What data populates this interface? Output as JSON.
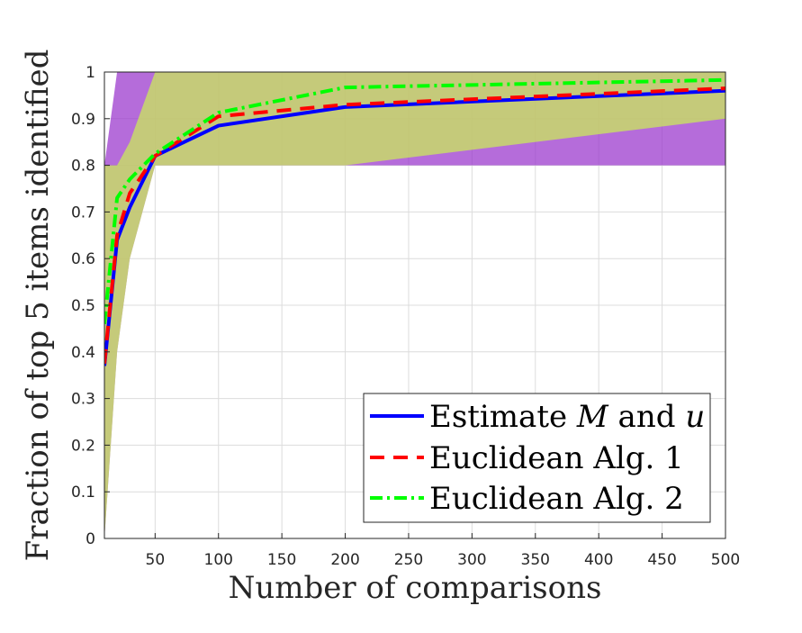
{
  "chart_data": {
    "type": "line",
    "xlabel": "Number of comparisons",
    "ylabel": "Fraction of top 5 items identified",
    "xlim": [
      10,
      500
    ],
    "ylim": [
      0,
      1
    ],
    "xticks": [
      50,
      100,
      150,
      200,
      250,
      300,
      350,
      400,
      450,
      500
    ],
    "yticks": [
      0,
      0.1,
      0.2,
      0.3,
      0.4,
      0.5,
      0.6,
      0.7,
      0.8,
      0.9,
      1
    ],
    "grid": true,
    "legend_position": "bottom-right",
    "x": [
      10,
      20,
      30,
      50,
      100,
      200,
      500
    ],
    "series": [
      {
        "name": "Estimate M and u",
        "legend_prefix": "Estimate ",
        "legend_math1": "M",
        "legend_mid": " and ",
        "legend_math2": "u",
        "style": "solid",
        "color": "#0000ff",
        "values": [
          0.37,
          0.64,
          0.71,
          0.82,
          0.885,
          0.925,
          0.96
        ],
        "band_color": "#9933cc",
        "band_lower": [
          0.0,
          0.4,
          0.6,
          0.8,
          0.8,
          0.8,
          0.8
        ],
        "band_upper": [
          0.8,
          1.0,
          1.0,
          1.0,
          1.0,
          1.0,
          1.0
        ]
      },
      {
        "name": "Euclidean Alg. 1",
        "style": "dashed",
        "color": "#ff0000",
        "values": [
          0.375,
          0.65,
          0.74,
          0.82,
          0.905,
          0.93,
          0.965
        ]
      },
      {
        "name": "Euclidean Alg. 2",
        "style": "dashdot",
        "color": "#00ff00",
        "values": [
          0.46,
          0.73,
          0.77,
          0.825,
          0.913,
          0.967,
          0.983
        ],
        "band_color": "#ccee55",
        "band_lower": [
          0.0,
          0.4,
          0.6,
          0.8,
          0.8,
          0.8,
          0.9
        ],
        "band_upper": [
          0.8,
          0.8,
          0.85,
          1.0,
          1.0,
          1.0,
          1.0
        ]
      }
    ]
  }
}
